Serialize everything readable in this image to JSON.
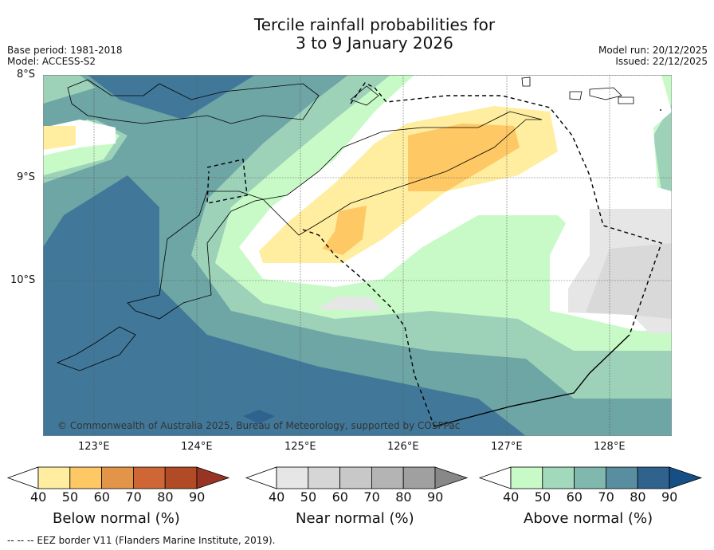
{
  "title_line1": "Tercile rainfall probabilities for",
  "title_line2": "3 to 9 January 2026",
  "base_period": "Base period: 1981-2018",
  "model": "Model: ACCESS-S2",
  "model_run": "Model run: 20/12/2025",
  "issued": "Issued: 22/12/2025",
  "map": {
    "lat_labels": [
      "8°S",
      "9°S",
      "10°S"
    ],
    "lon_labels": [
      "123°E",
      "124°E",
      "125°E",
      "126°E",
      "127°E",
      "128°E"
    ],
    "copyright": "© Commonwealth of Australia 2025, Bureau of Meteorology, supported by COSPPac"
  },
  "colorbars": [
    {
      "title": "Below normal (%)",
      "ticks": [
        "40",
        "50",
        "60",
        "70",
        "80",
        "90"
      ],
      "colors": [
        "#ffffff",
        "#ffeda0",
        "#fec864",
        "#e29448",
        "#cf6635",
        "#b04b25",
        "#983424"
      ]
    },
    {
      "title": "Near normal (%)",
      "ticks": [
        "40",
        "50",
        "60",
        "70",
        "80",
        "90"
      ],
      "colors": [
        "#ffffff",
        "#e6e6e6",
        "#d6d6d6",
        "#c8c8c8",
        "#b4b4b4",
        "#a0a0a0",
        "#888888"
      ]
    },
    {
      "title": "Above normal (%)",
      "ticks": [
        "40",
        "50",
        "60",
        "70",
        "80",
        "90"
      ],
      "colors": [
        "#ffffff",
        "#c8fac8",
        "#a2d8bc",
        "#80b8ae",
        "#588ea0",
        "#2f628c",
        "#154f86"
      ]
    }
  ],
  "footer": "--  --  -- EEZ border V11 (Flanders Marine Institute, 2019)."
}
